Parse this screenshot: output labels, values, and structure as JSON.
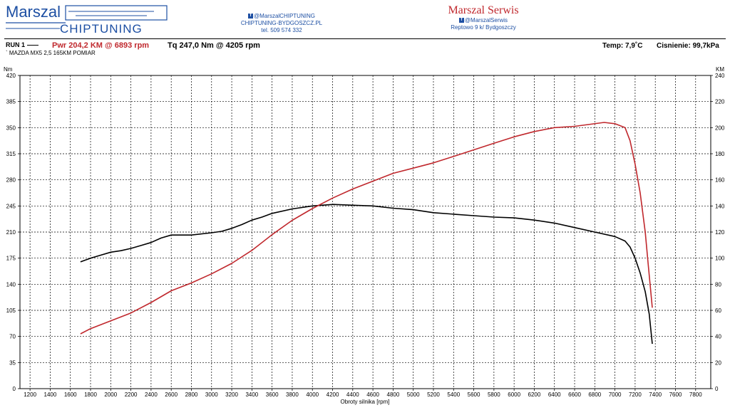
{
  "branding": {
    "logo_top": "Marszal",
    "logo_bottom": "CHIPTUNING",
    "contact_line1": "@MarszalCHIPTUNING",
    "contact_line2": "CHIPTUNING-BYDGOSZCZ.PL",
    "contact_line3": "tel. 509 574 332",
    "partner_name": "Marszal Serwis",
    "partner_fb": "@MarszalSerwis",
    "partner_address": "Reptowo 9 k/ Bydgoszczy",
    "fb_glyph": "f"
  },
  "header": {
    "run_label": "RUN 1",
    "pwr_text": "Pwr 204,2 KM @ 6893 rpm",
    "tq_text": "Tq 247,0 Nm @ 4205 rpm",
    "temp_text": "Temp: 7,9˚C",
    "pressure_text": "Cisnienie: 99,7kPa",
    "car_text": "` MAZDA MX5 2,5 165KM  POMIAR"
  },
  "colors": {
    "power": "#c0282d",
    "torque": "#000000",
    "brand_blue": "#1d4fa3",
    "grid": "#000000"
  },
  "chart_data": {
    "type": "line",
    "xlabel": "Obroty silnika [rpm]",
    "ylabel_left": "Nm",
    "ylabel_right": "KM",
    "xlim": [
      1100,
      7950
    ],
    "ylim_left": [
      0,
      420
    ],
    "ylim_right": [
      0,
      240
    ],
    "x_ticks": [
      1200,
      1400,
      1600,
      1800,
      2000,
      2200,
      2400,
      2600,
      2800,
      3000,
      3200,
      3400,
      3600,
      3800,
      4000,
      4200,
      4400,
      4600,
      4800,
      5000,
      5200,
      5400,
      5600,
      5800,
      6000,
      6200,
      6400,
      6600,
      6800,
      7000,
      7200,
      7400,
      7600,
      7800
    ],
    "y_ticks_left": [
      0,
      35,
      70,
      105,
      140,
      175,
      210,
      245,
      280,
      315,
      350,
      385,
      420
    ],
    "y_ticks_right": [
      0,
      20,
      40,
      60,
      80,
      100,
      120,
      140,
      160,
      180,
      200,
      220,
      240
    ],
    "grid": true,
    "series": [
      {
        "name": "Tq",
        "axis": "left",
        "x": [
          1700,
          1800,
          1900,
          2000,
          2100,
          2200,
          2300,
          2400,
          2500,
          2600,
          2800,
          3000,
          3100,
          3200,
          3300,
          3400,
          3500,
          3600,
          3800,
          4000,
          4205,
          4400,
          4600,
          4800,
          5000,
          5200,
          5400,
          5600,
          5800,
          6000,
          6200,
          6400,
          6600,
          6800,
          7000,
          7100,
          7150,
          7200,
          7250,
          7300,
          7340,
          7370
        ],
        "values": [
          170,
          175,
          179,
          183,
          185,
          188,
          192,
          196,
          202,
          206,
          206,
          209,
          211,
          215,
          220,
          226,
          230,
          235,
          241,
          245,
          247,
          246,
          245,
          242,
          240,
          236,
          234,
          232,
          230,
          229,
          226,
          222,
          216,
          210,
          204,
          198,
          190,
          175,
          155,
          130,
          100,
          60
        ]
      },
      {
        "name": "Pwr",
        "axis": "right",
        "x": [
          1700,
          1800,
          2000,
          2200,
          2400,
          2600,
          2800,
          3000,
          3200,
          3400,
          3600,
          3800,
          4000,
          4200,
          4400,
          4600,
          4800,
          5000,
          5200,
          5400,
          5600,
          5800,
          6000,
          6200,
          6400,
          6600,
          6893,
          7000,
          7100,
          7150,
          7200,
          7250,
          7300,
          7330,
          7370
        ],
        "values": [
          42,
          46,
          52,
          58,
          66,
          75,
          81,
          88,
          96,
          106,
          118,
          129,
          138,
          146,
          153,
          159,
          165,
          169,
          173,
          178,
          183,
          188,
          193,
          197,
          200,
          201,
          204,
          203,
          200,
          190,
          172,
          150,
          120,
          95,
          62
        ]
      }
    ]
  }
}
